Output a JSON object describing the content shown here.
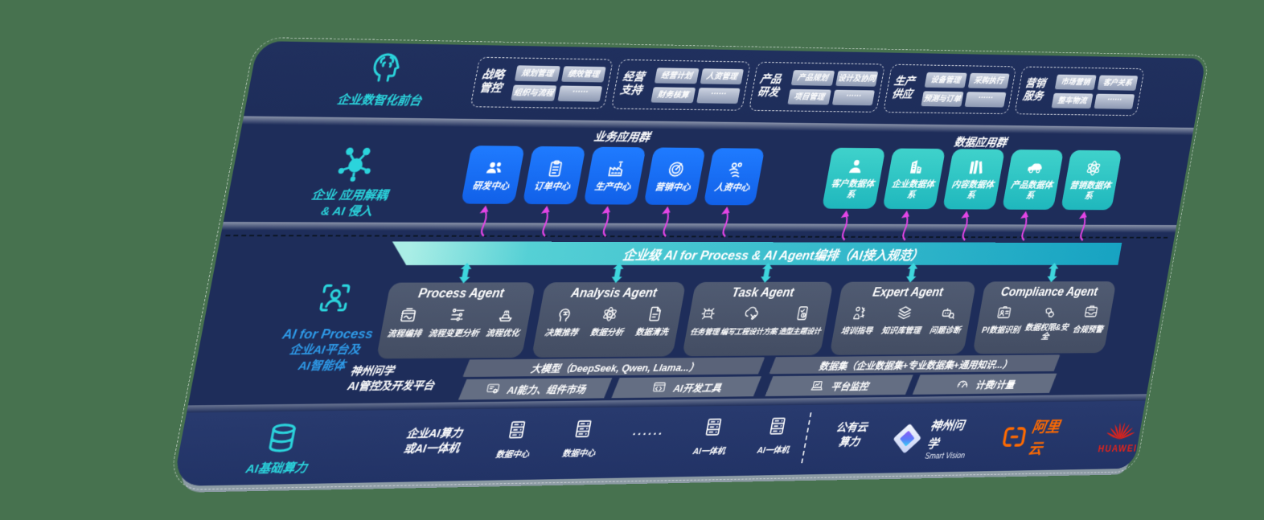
{
  "colors": {
    "background_green": "#47724f",
    "panel_navy": "#1e2d5a",
    "accent_cyan": "#2bd4dc",
    "label_blue": "#2e9ae8",
    "card_blue": "#176df2",
    "card_teal": "#2bc7c3",
    "arrow_magenta": "#e445e6",
    "bus_bar_teal_light": "#aaeee6",
    "bus_bar_teal_dark": "#17a3c2",
    "agent_card_gray": "#4a5469",
    "alibaba_orange": "#ff6a00",
    "huawei_red": "#e2231a"
  },
  "front_stage": {
    "icon": "brain-head-icon",
    "label": "企业数智化前台",
    "groups": [
      {
        "title": "战略管控",
        "tags": [
          "规划管理",
          "绩效管理",
          "组织与流程",
          "······"
        ]
      },
      {
        "title": "经营支持",
        "tags": [
          "经营计划",
          "人资管理",
          "财务核算",
          "······"
        ]
      },
      {
        "title": "产品研发",
        "tags": [
          "产品规划",
          "设计及协同",
          "项目管理",
          "······"
        ]
      },
      {
        "title": "生产供应",
        "tags": [
          "设备管理",
          "采购执行",
          "预测与订单",
          "······"
        ]
      },
      {
        "title": "营销服务",
        "tags": [
          "市场营销",
          "客户关系",
          "整车物流",
          "······"
        ]
      }
    ]
  },
  "decouple_layer": {
    "icon": "molecule-icon",
    "label_line1": "企业 应用解耦",
    "label_line2": "& AI 侵入",
    "business_group_title": "业务应用群",
    "data_group_title": "数据应用群",
    "business_apps": [
      {
        "label": "研发中心",
        "icon": "team-icon"
      },
      {
        "label": "订单中心",
        "icon": "clipboard-icon"
      },
      {
        "label": "生产中心",
        "icon": "factory-icon"
      },
      {
        "label": "营销中心",
        "icon": "target-icon"
      },
      {
        "label": "人资中心",
        "icon": "people-flow-icon"
      }
    ],
    "data_systems": [
      {
        "label": "客户数据体系",
        "icon": "person-icon"
      },
      {
        "label": "企业数据体系",
        "icon": "building-icon"
      },
      {
        "label": "内容数据体系",
        "icon": "books-icon"
      },
      {
        "label": "产品数据体系",
        "icon": "car-icon"
      },
      {
        "label": "营销数据体系",
        "icon": "atom-icon"
      }
    ]
  },
  "ai_bus": {
    "title": "企业级 AI for Process & AI Agent编排（AI接入规范）"
  },
  "agent_layer": {
    "icon": "person-scan-icon",
    "label_line1": "AI for Process",
    "label_line2": "企业AI平台及",
    "label_line3": "AI智能体",
    "agents": [
      {
        "title": "Process Agent",
        "items": [
          {
            "label": "流程编排",
            "icon": "box-wave-icon"
          },
          {
            "label": "流程变更分析",
            "icon": "flow-sliders-icon"
          },
          {
            "label": "流程优化",
            "icon": "conveyor-icon"
          }
        ]
      },
      {
        "title": "Analysis Agent",
        "items": [
          {
            "label": "决策推荐",
            "icon": "head-idea-icon"
          },
          {
            "label": "数据分析",
            "icon": "atom-icon"
          },
          {
            "label": "数据清洗",
            "icon": "doc-clean-icon"
          }
        ]
      },
      {
        "title": "Task Agent",
        "items": [
          {
            "label": "任务管理",
            "icon": "robot-grid-icon"
          },
          {
            "label": "编写工程设计方案",
            "icon": "cloud-pen-icon"
          },
          {
            "label": "造型主题设计",
            "icon": "tablet-check-icon"
          }
        ]
      },
      {
        "title": "Expert Agent",
        "items": [
          {
            "label": "培训指导",
            "icon": "training-icon"
          },
          {
            "label": "知识库管理",
            "icon": "layers-icon"
          },
          {
            "label": "问题诊断",
            "icon": "robot-search-icon"
          }
        ]
      },
      {
        "title": "Compliance Agent",
        "items": [
          {
            "label": "PI数据识别",
            "icon": "id-card-icon"
          },
          {
            "label": "数据权限&安全",
            "icon": "link-nodes-icon"
          },
          {
            "label": "合规预警",
            "icon": "mail-tray-icon"
          }
        ]
      }
    ]
  },
  "platform": {
    "label_line1": "神州问学",
    "label_line2": "AI管控及开发平台",
    "model_header": "大模型（DeepSeek, Qwen, Llama...）",
    "model_cells": [
      {
        "label": "AI能力、组件市场",
        "icon": "monitor-gear-icon"
      },
      {
        "label": "AI开发工具",
        "icon": "code-window-icon"
      }
    ],
    "data_header": "数据集（企业数据集+专业数据集+通用知识...）",
    "data_cells": [
      {
        "label": "平台监控",
        "icon": "laptop-chart-icon"
      },
      {
        "label": "计费/计量",
        "icon": "gauge-icon"
      }
    ]
  },
  "compute_layer": {
    "icon": "database-icon",
    "label": "AI基础算力",
    "enterprise_line1": "企业AI算力",
    "enterprise_line2": "或AI一体机",
    "nodes": [
      {
        "label": "数据中心",
        "icon": "server-icon"
      },
      {
        "label": "数据中心",
        "icon": "server-icon"
      },
      {
        "label": "······",
        "icon": ""
      },
      {
        "label": "AI一体机",
        "icon": "server-icon"
      },
      {
        "label": "AI一体机",
        "icon": "server-icon"
      }
    ],
    "public_cloud_line1": "公有云",
    "public_cloud_line2": "算力",
    "logos": [
      {
        "name": "神州问学",
        "sub": "Smart Vision",
        "icon": "diamond-logo-icon"
      },
      {
        "name": "阿里云",
        "icon": "alibaba-cloud-logo-icon"
      },
      {
        "name": "HUAWEI",
        "icon": "huawei-logo-icon"
      }
    ]
  }
}
